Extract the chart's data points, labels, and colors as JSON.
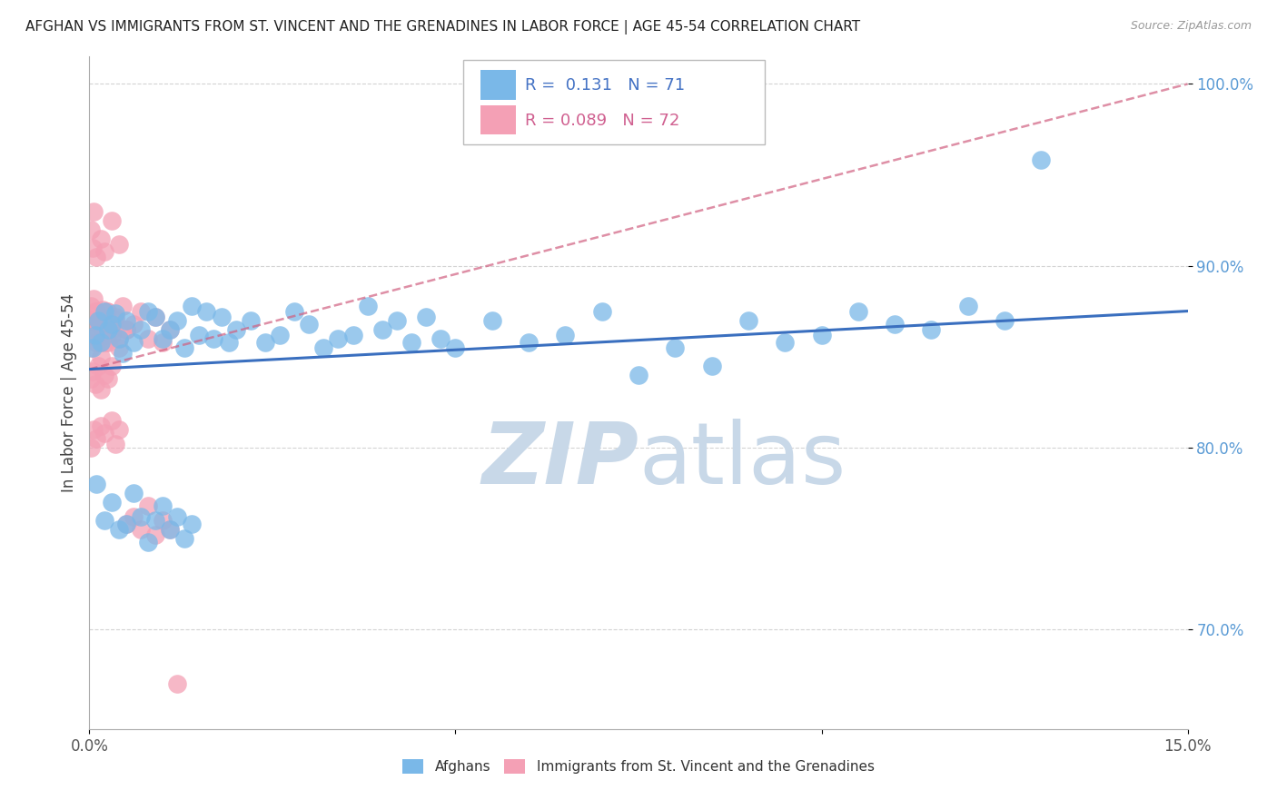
{
  "title": "AFGHAN VS IMMIGRANTS FROM ST. VINCENT AND THE GRENADINES IN LABOR FORCE | AGE 45-54 CORRELATION CHART",
  "source": "Source: ZipAtlas.com",
  "ylabel": "In Labor Force | Age 45-54",
  "x_min": 0.0,
  "x_max": 0.15,
  "y_min": 0.645,
  "y_max": 1.015,
  "legend_blue_label": "Afghans",
  "legend_pink_label": "Immigrants from St. Vincent and the Grenadines",
  "R_blue": 0.131,
  "N_blue": 71,
  "R_pink": 0.089,
  "N_pink": 72,
  "blue_color": "#7ab8e8",
  "pink_color": "#f4a0b5",
  "blue_line_color": "#3a6fbf",
  "pink_line_color": "#d06080",
  "watermark_color": "#c8d8e8",
  "background_color": "#ffffff",
  "grid_color": "#c8c8c8",
  "tick_color": "#5b9bd5",
  "blue_x": [
    0.0004,
    0.0008,
    0.0012,
    0.0015,
    0.002,
    0.0025,
    0.003,
    0.0035,
    0.004,
    0.0045,
    0.005,
    0.006,
    0.007,
    0.008,
    0.009,
    0.01,
    0.011,
    0.012,
    0.013,
    0.014,
    0.015,
    0.016,
    0.017,
    0.018,
    0.019,
    0.02,
    0.022,
    0.024,
    0.026,
    0.028,
    0.03,
    0.032,
    0.034,
    0.036,
    0.038,
    0.04,
    0.042,
    0.044,
    0.046,
    0.048,
    0.05,
    0.055,
    0.06,
    0.065,
    0.07,
    0.075,
    0.08,
    0.085,
    0.09,
    0.095,
    0.1,
    0.105,
    0.11,
    0.115,
    0.12,
    0.125,
    0.13,
    0.001,
    0.002,
    0.003,
    0.004,
    0.005,
    0.006,
    0.007,
    0.008,
    0.009,
    0.01,
    0.011,
    0.012,
    0.013,
    0.014
  ],
  "blue_y": [
    0.855,
    0.862,
    0.87,
    0.858,
    0.875,
    0.865,
    0.868,
    0.874,
    0.86,
    0.852,
    0.87,
    0.858,
    0.865,
    0.875,
    0.872,
    0.86,
    0.865,
    0.87,
    0.855,
    0.878,
    0.862,
    0.875,
    0.86,
    0.872,
    0.858,
    0.865,
    0.87,
    0.858,
    0.862,
    0.875,
    0.868,
    0.855,
    0.86,
    0.862,
    0.878,
    0.865,
    0.87,
    0.858,
    0.872,
    0.86,
    0.855,
    0.87,
    0.858,
    0.862,
    0.875,
    0.84,
    0.855,
    0.845,
    0.87,
    0.858,
    0.862,
    0.875,
    0.868,
    0.865,
    0.878,
    0.87,
    0.958,
    0.78,
    0.76,
    0.77,
    0.755,
    0.758,
    0.775,
    0.762,
    0.748,
    0.76,
    0.768,
    0.755,
    0.762,
    0.75,
    0.758
  ],
  "pink_x": [
    0.0002,
    0.0004,
    0.0006,
    0.0008,
    0.001,
    0.0012,
    0.0014,
    0.0016,
    0.0018,
    0.002,
    0.0022,
    0.0024,
    0.0026,
    0.003,
    0.0035,
    0.004,
    0.0045,
    0.005,
    0.006,
    0.007,
    0.008,
    0.009,
    0.01,
    0.011,
    0.0002,
    0.0004,
    0.0006,
    0.0008,
    0.001,
    0.0012,
    0.0014,
    0.0016,
    0.0018,
    0.002,
    0.0022,
    0.0024,
    0.003,
    0.0035,
    0.004,
    0.005,
    0.0002,
    0.0004,
    0.0006,
    0.001,
    0.0015,
    0.002,
    0.003,
    0.004,
    0.0002,
    0.0004,
    0.0008,
    0.0012,
    0.0016,
    0.002,
    0.0025,
    0.003,
    0.0002,
    0.0006,
    0.001,
    0.0015,
    0.002,
    0.003,
    0.0035,
    0.004,
    0.005,
    0.006,
    0.007,
    0.008,
    0.009,
    0.01,
    0.011,
    0.012
  ],
  "pink_y": [
    0.878,
    0.87,
    0.882,
    0.865,
    0.875,
    0.868,
    0.872,
    0.858,
    0.876,
    0.862,
    0.87,
    0.875,
    0.858,
    0.865,
    0.872,
    0.86,
    0.878,
    0.865,
    0.868,
    0.875,
    0.86,
    0.872,
    0.858,
    0.865,
    0.855,
    0.862,
    0.87,
    0.875,
    0.858,
    0.865,
    0.872,
    0.85,
    0.862,
    0.87,
    0.858,
    0.875,
    0.862,
    0.87,
    0.855,
    0.865,
    0.92,
    0.91,
    0.93,
    0.905,
    0.915,
    0.908,
    0.925,
    0.912,
    0.838,
    0.842,
    0.835,
    0.845,
    0.832,
    0.84,
    0.838,
    0.845,
    0.8,
    0.81,
    0.805,
    0.812,
    0.808,
    0.815,
    0.802,
    0.81,
    0.758,
    0.762,
    0.755,
    0.768,
    0.752,
    0.76,
    0.755,
    0.67
  ]
}
